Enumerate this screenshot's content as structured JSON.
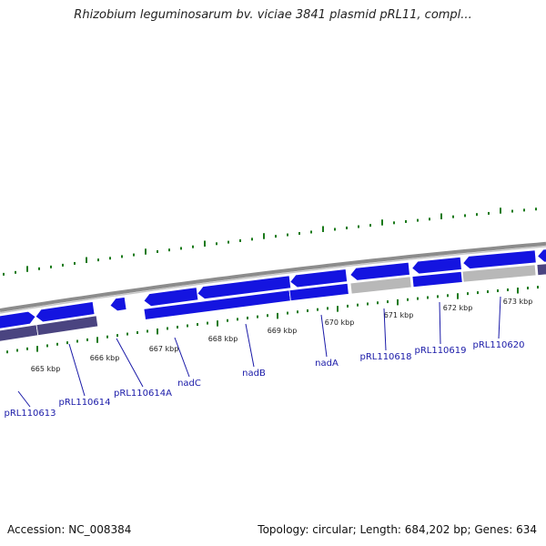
{
  "title": "Rhizobium leguminosarum bv. viciae 3841 plasmid pRL11, compl...",
  "footer": {
    "accession": "Accession: NC_008384",
    "topology": "Topology: circular; Length: 684,202 bp; Genes: 634"
  },
  "colors": {
    "forward_gene": "#1414e0",
    "reverse_gene": "#1414e0",
    "pseudo_gene": "#b8b8b8",
    "shadow_gene": "#4a4480",
    "backbone": "#8c8c8c",
    "tick": "#1a7a1a",
    "label": "#1a1aa8"
  },
  "ruler_labels": [
    "665 kbp",
    "666 kbp",
    "667 kbp",
    "668 kbp",
    "669 kbp",
    "670 kbp",
    "671 kbp",
    "672 kbp",
    "673 kbp"
  ],
  "gene_labels": [
    "pRL110613",
    "pRL110614",
    "pRL110614A",
    "nadC",
    "nadB",
    "nadA",
    "pRL110618",
    "pRL110619",
    "pRL110620"
  ]
}
